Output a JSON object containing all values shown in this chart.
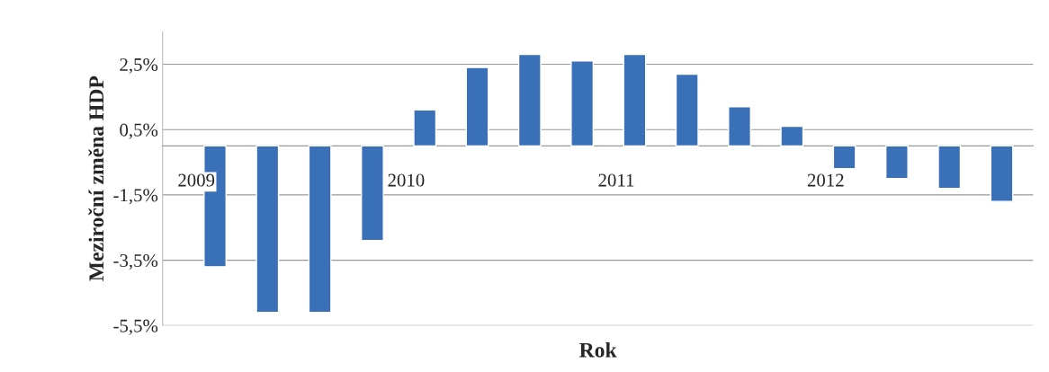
{
  "chart_data": {
    "type": "bar",
    "xlabel": "Rok",
    "ylabel": "Meziroční změna HDP",
    "categories": [
      "2009",
      null,
      null,
      null,
      "2010",
      null,
      null,
      null,
      "2011",
      null,
      null,
      null,
      "2012",
      null,
      null,
      null
    ],
    "values": [
      -3.7,
      -5.1,
      -5.1,
      -2.9,
      1.1,
      2.4,
      2.8,
      2.6,
      2.8,
      2.2,
      1.2,
      0.6,
      -0.7,
      -1.0,
      -1.3,
      -1.7
    ],
    "color": "#3a70b8",
    "ylim": [
      -5.5,
      3.5
    ],
    "yticks": [
      {
        "value": -5.5,
        "label": "-5,5%"
      },
      {
        "value": -3.5,
        "label": "-3,5%"
      },
      {
        "value": -1.5,
        "label": "-1,5%"
      },
      {
        "value": 0.5,
        "label": "0,5%"
      },
      {
        "value": 2.5,
        "label": "2,5%"
      }
    ],
    "grid": "y"
  }
}
